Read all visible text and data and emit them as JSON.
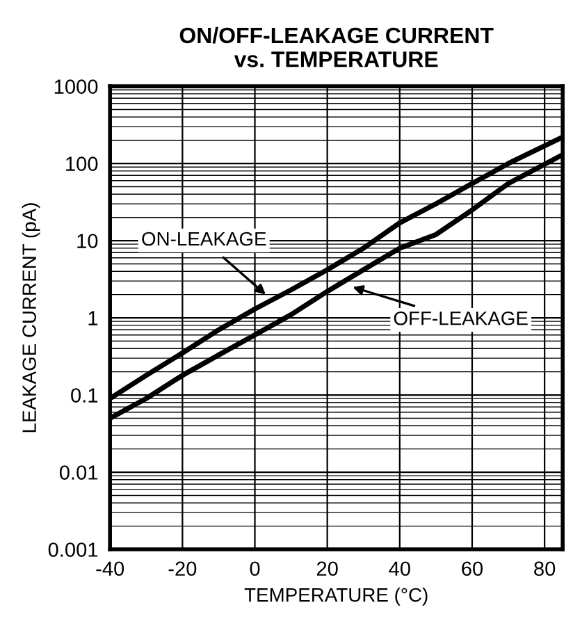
{
  "chart_data": {
    "type": "line",
    "title": "ON/OFF-LEAKAGE CURRENT\nvs. TEMPERATURE",
    "xlabel": "TEMPERATURE (°C)",
    "ylabel": "LEAKAGE CURRENT (pA)",
    "series": [
      {
        "color": "#000000",
        "x": [
          -40,
          -30,
          -20,
          -10,
          0,
          10,
          20,
          30,
          40,
          50,
          60,
          70,
          85
        ],
        "values": [
          0.09,
          0.18,
          0.35,
          0.7,
          1.3,
          2.3,
          4.2,
          8,
          17,
          30,
          55,
          100,
          220
        ]
      },
      {
        "color": "#000000",
        "x": [
          -40,
          -30,
          -20,
          -10,
          0,
          10,
          20,
          30,
          40,
          50,
          60,
          70,
          85
        ],
        "values": [
          0.05,
          0.09,
          0.18,
          0.33,
          0.6,
          1.1,
          2.2,
          4.2,
          8,
          12,
          25,
          55,
          130
        ]
      }
    ],
    "annotations": [
      {
        "text": "ON-LEAKAGE",
        "x": 3,
        "y": 2
      },
      {
        "text": "OFF-LEAKAGE",
        "x": 27,
        "y": 2.5
      }
    ],
    "xlim": [
      -40,
      85
    ],
    "xticks": [
      -40,
      -20,
      0,
      20,
      40,
      60,
      80
    ],
    "ylim": [
      0.001,
      1000
    ],
    "yticks": [
      0.001,
      0.01,
      0.1,
      1,
      10,
      100,
      1000
    ],
    "log": "y",
    "grid": true,
    "line_style": "solid",
    "marker": "none"
  }
}
